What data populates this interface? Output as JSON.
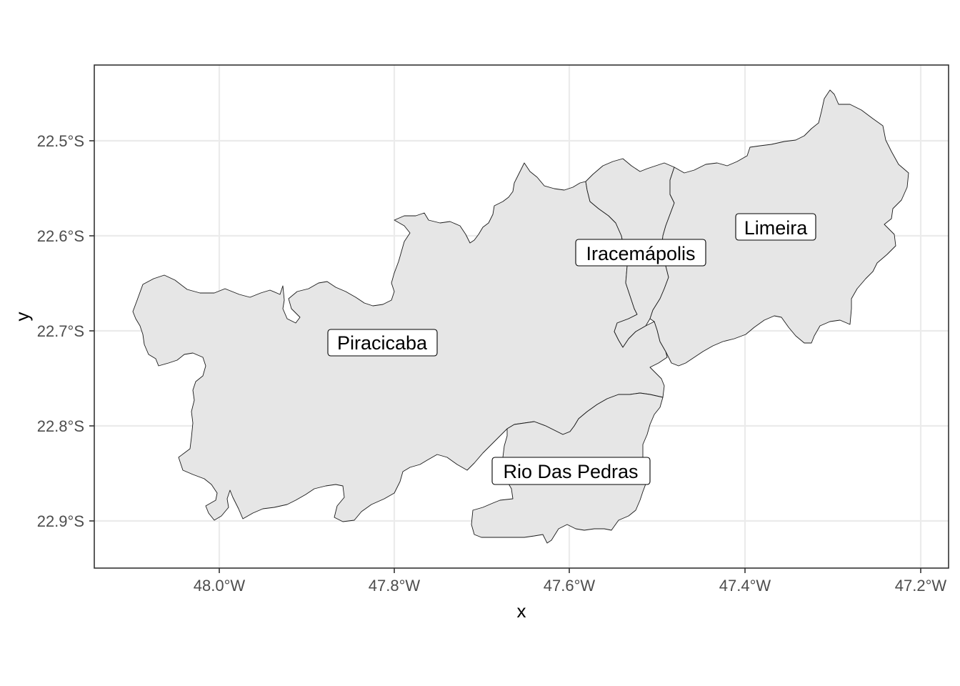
{
  "map": {
    "xlabel": "x",
    "ylabel": "y",
    "x_ticks": [
      "48.0°W",
      "47.8°W",
      "47.6°W",
      "47.4°W",
      "47.2°W"
    ],
    "y_ticks": [
      "22.5°S",
      "22.6°S",
      "22.7°S",
      "22.8°S",
      "22.9°S"
    ],
    "regions": [
      {
        "id": "piracicaba",
        "label": "Piracicaba"
      },
      {
        "id": "iracemapolis",
        "label": "Iracemápolis"
      },
      {
        "id": "limeira",
        "label": "Limeira"
      },
      {
        "id": "rio-das-pedras",
        "label": "Rio Das Pedras"
      }
    ],
    "colors": {
      "fill": "#e6e6e6",
      "border": "#1a1a1a",
      "grid": "#ebebeb",
      "panel_border": "#333333",
      "background": "#ffffff"
    }
  }
}
